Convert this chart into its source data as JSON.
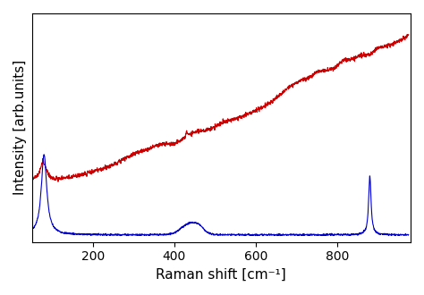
{
  "xlabel": "Raman shift [cm⁻¹]",
  "ylabel": "Intensity [arb.units]",
  "xlim": [
    50,
    980
  ],
  "ylim": [
    -0.03,
    1.05
  ],
  "red_color": "#cc0000",
  "blue_color": "#0000cc",
  "background_color": "#ffffff",
  "linewidth": 0.8,
  "tick_label_size": 10,
  "axis_label_size": 11
}
